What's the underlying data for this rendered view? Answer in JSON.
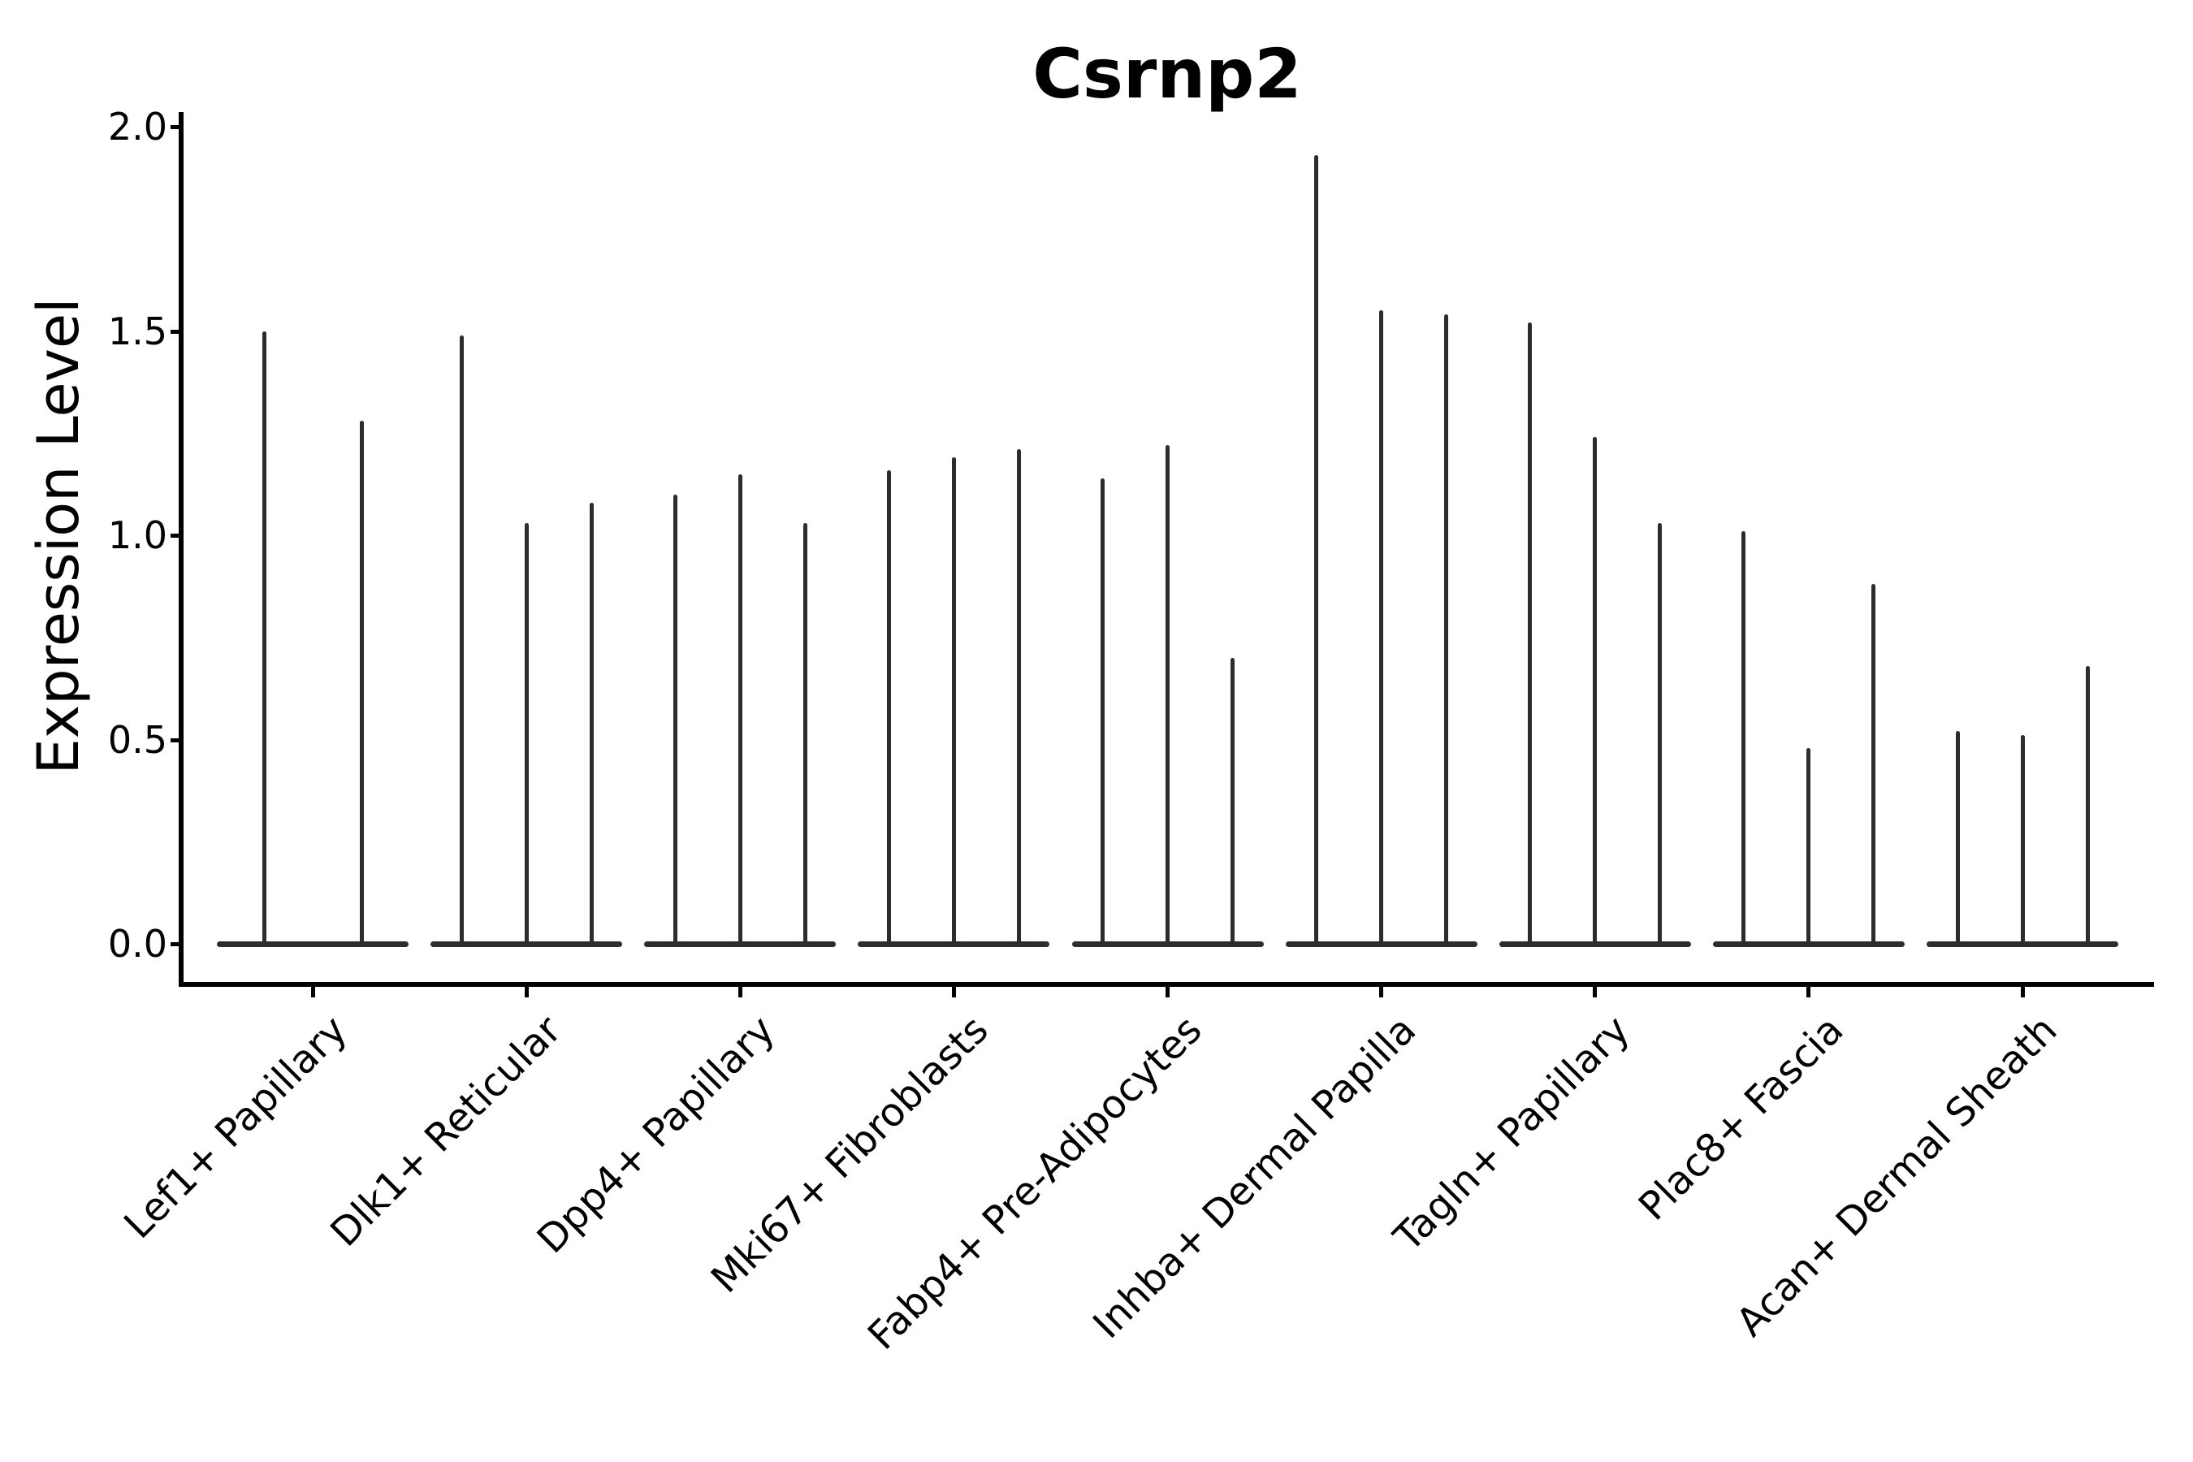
{
  "title": "Csrnp2",
  "axes": {
    "y_label": "Expression Level",
    "y_tick_labels": [
      "0.0",
      "0.5",
      "1.0",
      "1.5",
      "2.0"
    ],
    "x_tick_rotation_deg": 45
  },
  "colors": {
    "violin": "#2d2d2d",
    "axis": "#000000",
    "text": "#000000",
    "background": "#ffffff"
  },
  "chart_data": {
    "type": "violin",
    "title": "Csrnp2",
    "xlabel": "",
    "ylabel": "Expression Level",
    "ylim": [
      0.0,
      2.0
    ],
    "yticks": [
      0.0,
      0.5,
      1.0,
      1.5,
      2.0
    ],
    "grid": false,
    "legend": "none",
    "description": "Single-gene violin plot; each violin is collapsed to a flat mass at 0 expression with a thin spike rising to that violin's maximum expression value. Each cell-type group contains multiple violins sharing one flat baseline.",
    "categories": [
      "Lef1+ Papillary",
      "Dlk1+ Reticular",
      "Dpp4+ Papillary",
      "Mki67+ Fibroblasts",
      "Fabp4+ Pre-Adipocytes",
      "Inhba+ Dermal Papilla",
      "Tagln+ Papillary",
      "Plac8+ Fascia",
      "Acan+ Dermal Sheath"
    ],
    "groups": [
      {
        "category": "Lef1+ Papillary",
        "violins": 2,
        "spike_maxima": [
          1.5,
          1.28
        ]
      },
      {
        "category": "Dlk1+ Reticular",
        "violins": 3,
        "spike_maxima": [
          1.49,
          1.03,
          1.08
        ]
      },
      {
        "category": "Dpp4+ Papillary",
        "violins": 3,
        "spike_maxima": [
          1.1,
          1.15,
          1.03
        ]
      },
      {
        "category": "Mki67+ Fibroblasts",
        "violins": 3,
        "spike_maxima": [
          1.16,
          1.19,
          1.21
        ]
      },
      {
        "category": "Fabp4+ Pre-Adipocytes",
        "violins": 3,
        "spike_maxima": [
          1.14,
          1.22,
          0.7
        ]
      },
      {
        "category": "Inhba+ Dermal Papilla",
        "violins": 3,
        "spike_maxima": [
          1.93,
          1.55,
          1.54
        ]
      },
      {
        "category": "Tagln+ Papillary",
        "violins": 3,
        "spike_maxima": [
          1.52,
          1.24,
          1.03
        ]
      },
      {
        "category": "Plac8+ Fascia",
        "violins": 3,
        "spike_maxima": [
          1.01,
          0.48,
          0.88
        ]
      },
      {
        "category": "Acan+ Dermal Sheath",
        "violins": 3,
        "spike_maxima": [
          0.52,
          0.51,
          0.68
        ]
      }
    ]
  }
}
